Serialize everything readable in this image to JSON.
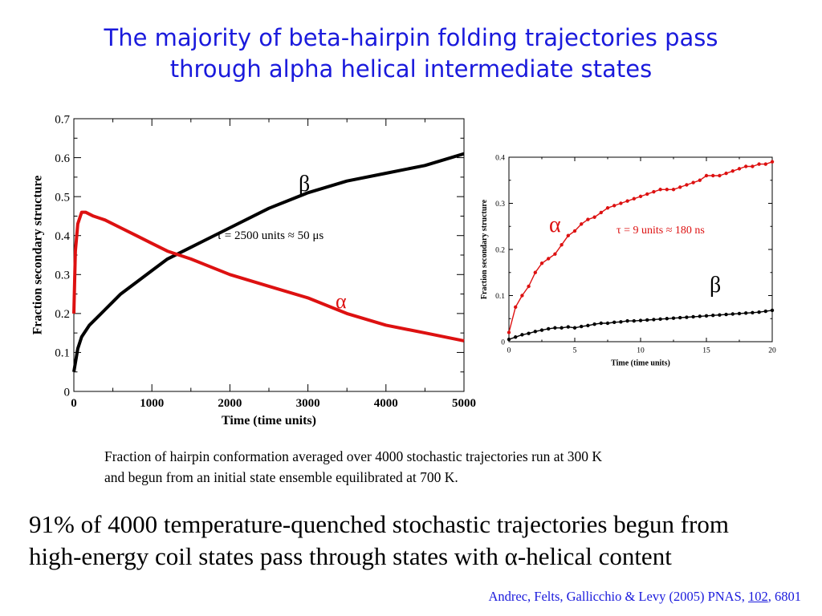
{
  "slide": {
    "title_line1": "The majority of beta-hairpin folding trajectories pass",
    "title_line2": "through alpha helical intermediate states",
    "caption_line1": "Fraction of hairpin conformation averaged over 4000 stochastic trajectories run at 300 K",
    "caption_line2": "and begun from an initial state ensemble equilibrated at 700 K.",
    "bottom_line1": "91% of 4000 temperature-quenched stochastic trajectories begun from",
    "bottom_line2": "high-energy coil states pass through states with α-helical content",
    "citation_prefix": "Andrec, Felts, Gallicchio & Levy (2005) PNAS, ",
    "citation_volume": "102",
    "citation_suffix": ", 6801"
  },
  "chart_data": [
    {
      "type": "line",
      "xlabel": "Time (time units)",
      "ylabel": "Fraction secondary structure",
      "xlim": [
        0,
        5000
      ],
      "ylim": [
        0,
        0.7
      ],
      "xticks": [
        0,
        1000,
        2000,
        3000,
        4000,
        5000
      ],
      "yticks": [
        0,
        0.1,
        0.2,
        0.3,
        0.4,
        0.5,
        0.6,
        0.7
      ],
      "xtick_labels": [
        "0",
        "1000",
        "2000",
        "3000",
        "4000",
        "5000"
      ],
      "ytick_labels": [
        "0",
        "0.1",
        "0.2",
        "0.3",
        "0.4",
        "0.5",
        "0.6",
        "0.7"
      ],
      "grid": false,
      "annotation": "τ = 2500 units ≈ 50 μs",
      "series": [
        {
          "name": "β",
          "color": "#000000",
          "x": [
            0,
            50,
            100,
            200,
            300,
            400,
            500,
            600,
            800,
            1000,
            1200,
            1500,
            2000,
            2500,
            3000,
            3500,
            4000,
            4500,
            5000
          ],
          "y": [
            0.05,
            0.11,
            0.14,
            0.17,
            0.19,
            0.21,
            0.23,
            0.25,
            0.28,
            0.31,
            0.34,
            0.37,
            0.42,
            0.47,
            0.51,
            0.54,
            0.56,
            0.58,
            0.61
          ]
        },
        {
          "name": "α",
          "color": "#dd1111",
          "x": [
            0,
            20,
            50,
            100,
            150,
            250,
            400,
            600,
            800,
            1000,
            1200,
            1500,
            2000,
            2500,
            3000,
            3500,
            4000,
            4500,
            5000
          ],
          "y": [
            0.2,
            0.36,
            0.43,
            0.46,
            0.46,
            0.45,
            0.44,
            0.42,
            0.4,
            0.38,
            0.36,
            0.34,
            0.3,
            0.27,
            0.24,
            0.2,
            0.17,
            0.15,
            0.13
          ]
        }
      ]
    },
    {
      "type": "line",
      "xlabel": "Time (time units)",
      "ylabel": "Fraction secondary structure",
      "xlim": [
        0,
        20
      ],
      "ylim": [
        0,
        0.4
      ],
      "xticks": [
        0,
        5,
        10,
        15,
        20
      ],
      "yticks": [
        0,
        0.1,
        0.2,
        0.3,
        0.4
      ],
      "xtick_labels": [
        "0",
        "5",
        "10",
        "15",
        "20"
      ],
      "ytick_labels": [
        "0",
        "0.1",
        "0.2",
        "0.3",
        "0.4"
      ],
      "grid": false,
      "annotation": "τ = 9 units ≈ 180 ns",
      "series": [
        {
          "name": "α",
          "color": "#dd1111",
          "x": [
            0,
            0.5,
            1,
            1.5,
            2,
            2.5,
            3,
            3.5,
            4,
            4.5,
            5,
            5.5,
            6,
            6.5,
            7,
            7.5,
            8,
            8.5,
            9,
            9.5,
            10,
            10.5,
            11,
            11.5,
            12,
            12.5,
            13,
            13.5,
            14,
            14.5,
            15,
            15.5,
            16,
            16.5,
            17,
            17.5,
            18,
            18.5,
            19,
            19.5,
            20
          ],
          "y": [
            0.02,
            0.075,
            0.1,
            0.12,
            0.15,
            0.17,
            0.18,
            0.19,
            0.21,
            0.23,
            0.24,
            0.255,
            0.265,
            0.27,
            0.28,
            0.29,
            0.295,
            0.3,
            0.305,
            0.31,
            0.315,
            0.32,
            0.325,
            0.33,
            0.33,
            0.33,
            0.335,
            0.34,
            0.345,
            0.35,
            0.36,
            0.36,
            0.36,
            0.365,
            0.37,
            0.375,
            0.38,
            0.38,
            0.385,
            0.385,
            0.39
          ]
        },
        {
          "name": "β",
          "color": "#000000",
          "x": [
            0,
            0.5,
            1,
            1.5,
            2,
            2.5,
            3,
            3.5,
            4,
            4.5,
            5,
            5.5,
            6,
            6.5,
            7,
            7.5,
            8,
            8.5,
            9,
            9.5,
            10,
            10.5,
            11,
            11.5,
            12,
            12.5,
            13,
            13.5,
            14,
            14.5,
            15,
            15.5,
            16,
            16.5,
            17,
            17.5,
            18,
            18.5,
            19,
            19.5,
            20
          ],
          "y": [
            0.005,
            0.01,
            0.015,
            0.018,
            0.022,
            0.025,
            0.028,
            0.03,
            0.03,
            0.032,
            0.03,
            0.033,
            0.035,
            0.038,
            0.04,
            0.04,
            0.042,
            0.043,
            0.045,
            0.045,
            0.046,
            0.047,
            0.048,
            0.049,
            0.05,
            0.051,
            0.052,
            0.053,
            0.054,
            0.055,
            0.056,
            0.057,
            0.058,
            0.059,
            0.06,
            0.061,
            0.062,
            0.063,
            0.064,
            0.066,
            0.068
          ]
        }
      ]
    }
  ]
}
